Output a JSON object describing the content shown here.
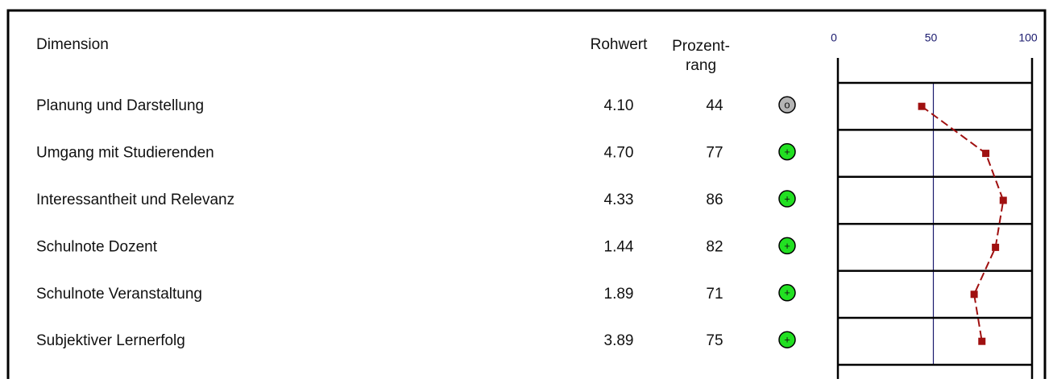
{
  "table": {
    "header": {
      "dimension": "Dimension",
      "raw": "Rohwert",
      "percentile": [
        "Prozent-",
        "rang"
      ]
    },
    "rows": [
      {
        "dimension": "Planung und Darstellung",
        "raw": "4.10",
        "percentile": 44,
        "status": "o"
      },
      {
        "dimension": "Umgang mit Studierenden",
        "raw": "4.70",
        "percentile": 77,
        "status": "+"
      },
      {
        "dimension": "Interessantheit und Relevanz",
        "raw": "4.33",
        "percentile": 86,
        "status": "+"
      },
      {
        "dimension": "Schulnote Dozent",
        "raw": "1.44",
        "percentile": 82,
        "status": "+"
      },
      {
        "dimension": "Schulnote Veranstaltung",
        "raw": "1.89",
        "percentile": 71,
        "status": "+"
      },
      {
        "dimension": "Subjektiver Lernerfolg",
        "raw": "3.89",
        "percentile": 75,
        "status": "+"
      }
    ],
    "status_colors": {
      "o": "#b4b4b4",
      "+": "#22e022"
    },
    "profile": {
      "xlim": [
        0,
        100
      ],
      "xticks": [
        0,
        50,
        100
      ],
      "reference": 50,
      "color": "#a01010",
      "reference_color": "#1a1a6e"
    }
  }
}
